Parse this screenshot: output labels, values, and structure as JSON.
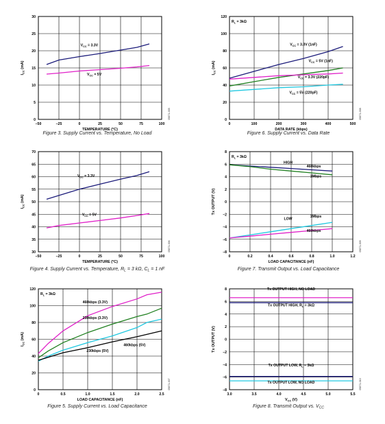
{
  "chart_data": [
    {
      "id": "fig3",
      "type": "line",
      "caption": "Figure 3. Supply Current vs. Temperature, No Load",
      "xlabel": "TEMPERATURE (°C)",
      "ylabel": "I_CC (mA)",
      "xlim": [
        -50,
        100
      ],
      "ylim": [
        0,
        30
      ],
      "xticks": [
        -50,
        -25,
        0,
        25,
        50,
        75,
        100
      ],
      "yticks": [
        0,
        5,
        10,
        15,
        20,
        25,
        30
      ],
      "tick_labels_x": [
        "–50",
        "–25",
        "0",
        "25",
        "50",
        "75",
        "100"
      ],
      "tick_labels_y": [
        "0",
        "5",
        "10",
        "15",
        "20",
        "25",
        "30"
      ],
      "note": "",
      "side_code": "05871-005",
      "series": [
        {
          "name": "V_CC = 3.3V",
          "color": "#1b1b7a",
          "x": [
            -40,
            -25,
            0,
            25,
            50,
            70,
            85
          ],
          "y": [
            16.0,
            17.3,
            18.3,
            19.2,
            20.2,
            21.0,
            22.0
          ]
        },
        {
          "name": "V_CC = 5V",
          "color": "#e020c8",
          "x": [
            -40,
            -25,
            0,
            25,
            50,
            70,
            85
          ],
          "y": [
            13.2,
            13.5,
            14.1,
            14.5,
            14.9,
            15.3,
            15.7
          ]
        }
      ],
      "labels": [
        {
          "text": "V_CC = 3.3V",
          "x": 12,
          "y": 21.3
        },
        {
          "text": "V_CC = 5V",
          "x": 18,
          "y": 12.8
        }
      ]
    },
    {
      "id": "fig6",
      "type": "line",
      "caption": "Figure 6. Supply Current vs. Data Rate",
      "xlabel": "DATA RATE (kbps)",
      "ylabel": "I_CC (mA)",
      "xlim": [
        0,
        500
      ],
      "ylim": [
        0,
        120
      ],
      "xticks": [
        0,
        100,
        200,
        300,
        400,
        500
      ],
      "yticks": [
        0,
        20,
        40,
        60,
        80,
        100,
        120
      ],
      "tick_labels_x": [
        "0",
        "100",
        "200",
        "300",
        "400",
        "500"
      ],
      "tick_labels_y": [
        "0",
        "20",
        "40",
        "60",
        "80",
        "100",
        "120"
      ],
      "note": "R_L = 3kΩ",
      "side_code": "05871-008",
      "series": [
        {
          "name": "V_CC = 3.3V (1nF)",
          "color": "#1b1b7a",
          "x": [
            0,
            100,
            200,
            300,
            400,
            460
          ],
          "y": [
            48,
            56,
            64,
            71,
            79,
            85
          ]
        },
        {
          "name": "V_CC = 5V (1nF)",
          "color": "#208020",
          "x": [
            0,
            100,
            200,
            300,
            400,
            460
          ],
          "y": [
            39,
            44,
            49,
            53,
            57,
            60
          ]
        },
        {
          "name": "V_CC = 3.3V (220pF)",
          "color": "#e020c8",
          "x": [
            0,
            100,
            200,
            300,
            400,
            460
          ],
          "y": [
            47,
            49,
            51,
            52,
            53,
            54
          ]
        },
        {
          "name": "V_CC = 5V (220pF)",
          "color": "#20c8e0",
          "x": [
            0,
            100,
            200,
            300,
            400,
            460
          ],
          "y": [
            33,
            35,
            37,
            38,
            40,
            41
          ]
        }
      ],
      "labels": [
        {
          "text": "V_CC = 3.3V (1nF)",
          "x": 300,
          "y": 86
        },
        {
          "text": "V_CC = 5V (1nF)",
          "x": 370,
          "y": 67
        },
        {
          "text": "V_CC = 3.3V (220pF)",
          "x": 340,
          "y": 48
        },
        {
          "text": "V_CC = 5V (220pF)",
          "x": 300,
          "y": 30
        }
      ]
    },
    {
      "id": "fig4",
      "type": "line",
      "caption": "Figure 4. Supply Current vs. Temperature, R_L = 3 kΩ, C_L = 1 nF",
      "xlabel": "TEMPERATURE (°C)",
      "ylabel": "I_CC (mA)",
      "xlim": [
        -50,
        100
      ],
      "ylim": [
        30,
        70
      ],
      "xticks": [
        -50,
        -25,
        0,
        25,
        50,
        75,
        100
      ],
      "yticks": [
        30,
        35,
        40,
        45,
        50,
        55,
        60,
        65,
        70
      ],
      "tick_labels_x": [
        "–50",
        "–25",
        "0",
        "25",
        "50",
        "75",
        "100"
      ],
      "tick_labels_y": [
        "30",
        "35",
        "40",
        "45",
        "50",
        "55",
        "60",
        "65",
        "70"
      ],
      "note": "",
      "side_code": "05871-006",
      "series": [
        {
          "name": "V_CC = 3.3V",
          "color": "#1b1b7a",
          "x": [
            -40,
            -25,
            0,
            25,
            50,
            70,
            85
          ],
          "y": [
            51.0,
            52.5,
            55.0,
            57.0,
            59.0,
            60.5,
            62.0
          ]
        },
        {
          "name": "V_CC = 5V",
          "color": "#e020c8",
          "x": [
            -40,
            -25,
            0,
            25,
            50,
            70,
            85
          ],
          "y": [
            39.5,
            40.5,
            41.5,
            42.5,
            43.5,
            44.5,
            45.3
          ]
        }
      ],
      "labels": [
        {
          "text": "V_CC = 3.3V",
          "x": 8,
          "y": 59.8
        },
        {
          "text": "V_CC = 5V",
          "x": 12,
          "y": 44.4
        }
      ]
    },
    {
      "id": "fig7",
      "type": "line",
      "caption": "Figure 7. Transmit Output vs. Load Capacitance",
      "xlabel": "LOAD CAPACITANCE (nF)",
      "ylabel": "Tx OUTPUT (V)",
      "xlim": [
        0,
        1.2
      ],
      "ylim": [
        -8,
        8
      ],
      "xticks": [
        0,
        0.2,
        0.4,
        0.6,
        0.8,
        1.0,
        1.2
      ],
      "yticks": [
        -8,
        -6,
        -4,
        -2,
        0,
        2,
        4,
        6,
        8
      ],
      "tick_labels_x": [
        "0",
        "0.2",
        "0.4",
        "0.6",
        "0.8",
        "1.0",
        "1.2"
      ],
      "tick_labels_y": [
        "–8",
        "–6",
        "–4",
        "–2",
        "0",
        "2",
        "4",
        "6",
        "8"
      ],
      "note": "R_L = 3kΩ",
      "side_code": "05871-009",
      "series": [
        {
          "name": "HIGH 460kbps",
          "color": "#1b1b7a",
          "x": [
            0,
            0.2,
            0.4,
            0.6,
            0.8,
            1.0
          ],
          "y": [
            5.9,
            5.7,
            5.5,
            5.3,
            5.1,
            4.9
          ]
        },
        {
          "name": "HIGH 1Mbps",
          "color": "#208020",
          "x": [
            0,
            0.2,
            0.4,
            0.6,
            0.8,
            1.0
          ],
          "y": [
            5.9,
            5.6,
            5.2,
            4.9,
            4.6,
            4.3
          ]
        },
        {
          "name": "LOW 1Mbps",
          "color": "#20c8e0",
          "x": [
            0,
            0.2,
            0.4,
            0.6,
            0.8,
            1.0
          ],
          "y": [
            -5.8,
            -5.3,
            -4.8,
            -4.3,
            -3.8,
            -3.3
          ]
        },
        {
          "name": "LOW 460kbps",
          "color": "#e020c8",
          "x": [
            0,
            0.2,
            0.4,
            0.6,
            0.8,
            1.0
          ],
          "y": [
            -5.8,
            -5.5,
            -5.2,
            -4.9,
            -4.6,
            -4.3
          ]
        }
      ],
      "labels": [
        {
          "text": "HIGH",
          "x": 0.57,
          "y": 6.1
        },
        {
          "text": "460kbps",
          "x": 0.82,
          "y": 5.5
        },
        {
          "text": "1Mbps",
          "x": 0.84,
          "y": 3.9
        },
        {
          "text": "LOW",
          "x": 0.57,
          "y": -2.9
        },
        {
          "text": "1Mbps",
          "x": 0.84,
          "y": -2.5
        },
        {
          "text": "460kbps",
          "x": 0.82,
          "y": -4.8
        }
      ]
    },
    {
      "id": "fig5",
      "type": "line",
      "caption": "Figure 5. Supply Current vs. Load Capacitance",
      "xlabel": "LOAD CAPACITANCE (nF)",
      "ylabel": "I_CC (mA)",
      "xlim": [
        0,
        2.5
      ],
      "ylim": [
        0,
        120
      ],
      "xticks": [
        0,
        0.5,
        1.0,
        1.5,
        2.0,
        2.5
      ],
      "yticks": [
        0,
        20,
        40,
        60,
        80,
        100,
        120
      ],
      "tick_labels_x": [
        "0",
        "0.5",
        "1.0",
        "1.5",
        "2.0",
        "2.5"
      ],
      "tick_labels_y": [
        "0",
        "20",
        "40",
        "60",
        "80",
        "100",
        "120"
      ],
      "note": "R_L = 3kΩ",
      "side_code": "05871-007",
      "series": [
        {
          "name": "460kbps (3.3V)",
          "color": "#e020c8",
          "x": [
            0,
            0.2,
            0.5,
            1.0,
            1.5,
            2.0,
            2.2,
            2.5
          ],
          "y": [
            43,
            55,
            70,
            88,
            99,
            108,
            113,
            116
          ]
        },
        {
          "name": "230kbps (3.3V)",
          "color": "#208020",
          "x": [
            0,
            0.2,
            0.5,
            1.0,
            1.5,
            2.0,
            2.2,
            2.5
          ],
          "y": [
            38,
            46,
            56,
            68,
            78,
            87,
            90,
            97
          ]
        },
        {
          "name": "460kbps (5V)",
          "color": "#20c8e0",
          "x": [
            0,
            0.2,
            0.5,
            1.0,
            1.5,
            2.0,
            2.2,
            2.5
          ],
          "y": [
            34,
            40,
            47,
            56,
            64,
            74,
            80,
            84
          ]
        },
        {
          "name": "230kbps (5V)",
          "color": "#000000",
          "x": [
            0,
            0.5,
            1.0,
            1.5,
            2.0,
            2.5
          ],
          "y": [
            35,
            44,
            50,
            57,
            63,
            70
          ]
        }
      ],
      "labels": [
        {
          "text": "460kbps (3.3V)",
          "x": 1.15,
          "y": 103
        },
        {
          "text": "230kbps (3.3V)",
          "x": 1.15,
          "y": 84
        },
        {
          "text": "460kbps (5V)",
          "x": 1.95,
          "y": 52
        },
        {
          "text": "230kbps (5V)",
          "x": 1.2,
          "y": 45
        }
      ]
    },
    {
      "id": "fig8",
      "type": "line",
      "caption": "Figure 8. Transmit Output vs. V_CC",
      "xlabel": "V_CC (V)",
      "ylabel": "Tx OUTPUT (V)",
      "xlim": [
        3.0,
        5.5
      ],
      "ylim": [
        -8,
        8
      ],
      "xticks": [
        3.0,
        3.5,
        4.0,
        4.5,
        5.0,
        5.5
      ],
      "yticks": [
        -8,
        -6,
        -4,
        -2,
        0,
        2,
        4,
        6,
        8
      ],
      "tick_labels_x": [
        "3.0",
        "3.5",
        "4.0",
        "4.5",
        "5.0",
        "5.5"
      ],
      "tick_labels_y": [
        "–8",
        "–6",
        "–4",
        "–2",
        "0",
        "2",
        "4",
        "6",
        "8"
      ],
      "note": "",
      "side_code": "05871-010",
      "series": [
        {
          "name": "Tx OUTPUT HIGH, NO LOAD",
          "color": "#e020c8",
          "x": [
            3.0,
            5.5
          ],
          "y": [
            6.6,
            6.6
          ]
        },
        {
          "name": "Tx OUTPUT HIGH, R_L = 3kΩ",
          "color": "#1b1b7a",
          "x": [
            3.0,
            5.5
          ],
          "y": [
            5.8,
            5.8
          ]
        },
        {
          "name": "Tx OUTPUT LOW, R_L = 3kΩ",
          "color": "#1b1b7a",
          "x": [
            3.0,
            5.5
          ],
          "y": [
            -5.9,
            -5.9
          ]
        },
        {
          "name": "Tx OUTPUT LOW, NO LOAD",
          "color": "#20c8e0",
          "x": [
            3.0,
            5.5
          ],
          "y": [
            -6.6,
            -6.6
          ]
        }
      ],
      "labels": [
        {
          "text": "Tx OUTPUT HIGH, NO LOAD",
          "x": 4.25,
          "y": 7.8
        },
        {
          "text": "Tx OUTPUT HIGH, R_L = 3kΩ",
          "x": 4.25,
          "y": 5.2
        },
        {
          "text": "Tx OUTPUT LOW, R_L = 3kΩ",
          "x": 4.25,
          "y": -4.3
        },
        {
          "text": "Tx OUTPUT LOW, NO LOAD",
          "x": 4.25,
          "y": -7.0
        }
      ]
    }
  ]
}
